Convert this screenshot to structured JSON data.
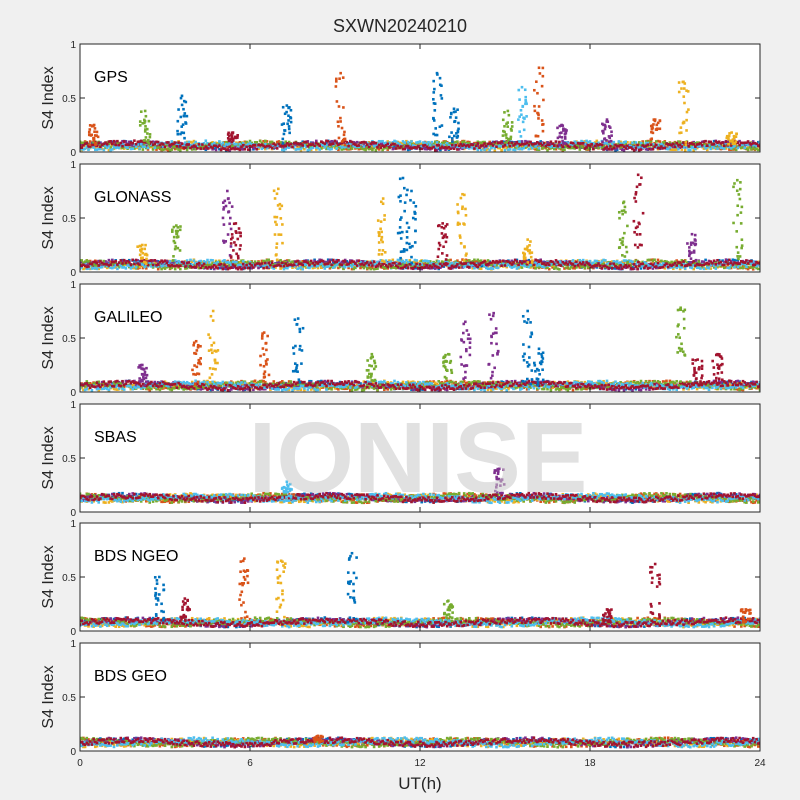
{
  "title": "SXWN20240210",
  "watermark": "IONISE",
  "colors": [
    "#0072BD",
    "#D95319",
    "#EDB120",
    "#7E2F8E",
    "#77AC30",
    "#4DBEEE",
    "#A2142F"
  ],
  "chart_data": {
    "type": "scatter",
    "x_axis": {
      "label": "UT(h)",
      "range": [
        0,
        24
      ],
      "ticks": [
        0,
        6,
        12,
        18,
        24
      ],
      "tick_labels": [
        "0",
        "6",
        "12",
        "18",
        "24"
      ]
    },
    "panels": [
      {
        "label": "GPS",
        "ylabel": "S4 Index",
        "ylim": [
          0,
          1
        ],
        "yticks": [
          0,
          0.5,
          1
        ],
        "ytick_labels": [
          "0",
          "0.5",
          "1"
        ],
        "baseline": 0.06,
        "spikes": [
          {
            "x": 0.5,
            "peak": 0.25,
            "series": 1
          },
          {
            "x": 2.3,
            "peak": 0.38,
            "series": 4
          },
          {
            "x": 3.6,
            "peak": 0.52,
            "series": 0
          },
          {
            "x": 5.4,
            "peak": 0.18,
            "series": 6
          },
          {
            "x": 7.3,
            "peak": 0.43,
            "series": 0
          },
          {
            "x": 9.2,
            "peak": 0.73,
            "series": 1
          },
          {
            "x": 12.6,
            "peak": 0.73,
            "series": 0
          },
          {
            "x": 13.2,
            "peak": 0.4,
            "series": 0
          },
          {
            "x": 15.1,
            "peak": 0.38,
            "series": 4
          },
          {
            "x": 15.6,
            "peak": 0.6,
            "series": 5
          },
          {
            "x": 16.2,
            "peak": 0.78,
            "series": 1
          },
          {
            "x": 17.0,
            "peak": 0.25,
            "series": 3
          },
          {
            "x": 18.6,
            "peak": 0.3,
            "series": 3
          },
          {
            "x": 20.3,
            "peak": 0.3,
            "series": 1
          },
          {
            "x": 21.3,
            "peak": 0.65,
            "series": 2
          },
          {
            "x": 23.0,
            "peak": 0.18,
            "series": 2
          }
        ]
      },
      {
        "label": "GLONASS",
        "ylabel": "S4 Index",
        "ylim": [
          0,
          1
        ],
        "yticks": [
          0,
          0.5,
          1
        ],
        "ytick_labels": [
          "0",
          "0.5",
          "1"
        ],
        "baseline": 0.07,
        "spikes": [
          {
            "x": 2.2,
            "peak": 0.25,
            "series": 2
          },
          {
            "x": 3.4,
            "peak": 0.43,
            "series": 4
          },
          {
            "x": 5.2,
            "peak": 0.75,
            "series": 3
          },
          {
            "x": 5.5,
            "peak": 0.45,
            "series": 6
          },
          {
            "x": 7.0,
            "peak": 0.77,
            "series": 2
          },
          {
            "x": 10.7,
            "peak": 0.68,
            "series": 2
          },
          {
            "x": 11.4,
            "peak": 0.87,
            "series": 0
          },
          {
            "x": 11.7,
            "peak": 0.75,
            "series": 0
          },
          {
            "x": 12.8,
            "peak": 0.45,
            "series": 6
          },
          {
            "x": 13.5,
            "peak": 0.72,
            "series": 2
          },
          {
            "x": 15.8,
            "peak": 0.3,
            "series": 2
          },
          {
            "x": 19.2,
            "peak": 0.65,
            "series": 4
          },
          {
            "x": 19.7,
            "peak": 0.9,
            "series": 6
          },
          {
            "x": 21.6,
            "peak": 0.35,
            "series": 3
          },
          {
            "x": 23.2,
            "peak": 0.85,
            "series": 4
          }
        ]
      },
      {
        "label": "GALILEO",
        "ylabel": "S4 Index",
        "ylim": [
          0,
          1
        ],
        "yticks": [
          0,
          0.5,
          1
        ],
        "ytick_labels": [
          "0",
          "0.5",
          "1"
        ],
        "baseline": 0.06,
        "spikes": [
          {
            "x": 2.2,
            "peak": 0.25,
            "series": 3
          },
          {
            "x": 4.1,
            "peak": 0.47,
            "series": 1
          },
          {
            "x": 4.7,
            "peak": 0.75,
            "series": 2
          },
          {
            "x": 6.5,
            "peak": 0.55,
            "series": 1
          },
          {
            "x": 7.7,
            "peak": 0.68,
            "series": 0
          },
          {
            "x": 10.3,
            "peak": 0.35,
            "series": 4
          },
          {
            "x": 13.0,
            "peak": 0.35,
            "series": 4
          },
          {
            "x": 13.6,
            "peak": 0.65,
            "series": 3
          },
          {
            "x": 14.6,
            "peak": 0.73,
            "series": 3
          },
          {
            "x": 15.8,
            "peak": 0.75,
            "series": 0
          },
          {
            "x": 16.2,
            "peak": 0.4,
            "series": 0
          },
          {
            "x": 21.2,
            "peak": 0.78,
            "series": 4
          },
          {
            "x": 21.8,
            "peak": 0.3,
            "series": 6
          },
          {
            "x": 22.5,
            "peak": 0.35,
            "series": 6
          }
        ]
      },
      {
        "label": "SBAS",
        "ylabel": "S4 Index",
        "ylim": [
          0,
          1
        ],
        "yticks": [
          0,
          0.5,
          1
        ],
        "ytick_labels": [
          "0",
          "0.5",
          "1"
        ],
        "baseline": 0.13,
        "spikes": [
          {
            "x": 7.3,
            "peak": 0.28,
            "series": 5
          },
          {
            "x": 14.8,
            "peak": 0.4,
            "series": 3
          }
        ]
      },
      {
        "label": "BDS NGEO",
        "ylabel": "S4 Index",
        "ylim": [
          0,
          1
        ],
        "yticks": [
          0,
          0.5,
          1
        ],
        "ytick_labels": [
          "0",
          "0.5",
          "1"
        ],
        "baseline": 0.08,
        "spikes": [
          {
            "x": 2.8,
            "peak": 0.5,
            "series": 0
          },
          {
            "x": 3.7,
            "peak": 0.3,
            "series": 6
          },
          {
            "x": 5.8,
            "peak": 0.67,
            "series": 1
          },
          {
            "x": 7.1,
            "peak": 0.65,
            "series": 2
          },
          {
            "x": 9.6,
            "peak": 0.72,
            "series": 0
          },
          {
            "x": 13.0,
            "peak": 0.28,
            "series": 4
          },
          {
            "x": 18.6,
            "peak": 0.2,
            "series": 6
          },
          {
            "x": 20.3,
            "peak": 0.62,
            "series": 6
          },
          {
            "x": 23.5,
            "peak": 0.2,
            "series": 1
          }
        ]
      },
      {
        "label": "BDS GEO",
        "ylabel": "S4 Index",
        "ylim": [
          0,
          1
        ],
        "yticks": [
          0,
          0.5,
          1
        ],
        "ytick_labels": [
          "0",
          "0.5",
          "1"
        ],
        "baseline": 0.08,
        "spikes": [
          {
            "x": 8.4,
            "peak": 0.14,
            "series": 1
          }
        ]
      }
    ]
  }
}
